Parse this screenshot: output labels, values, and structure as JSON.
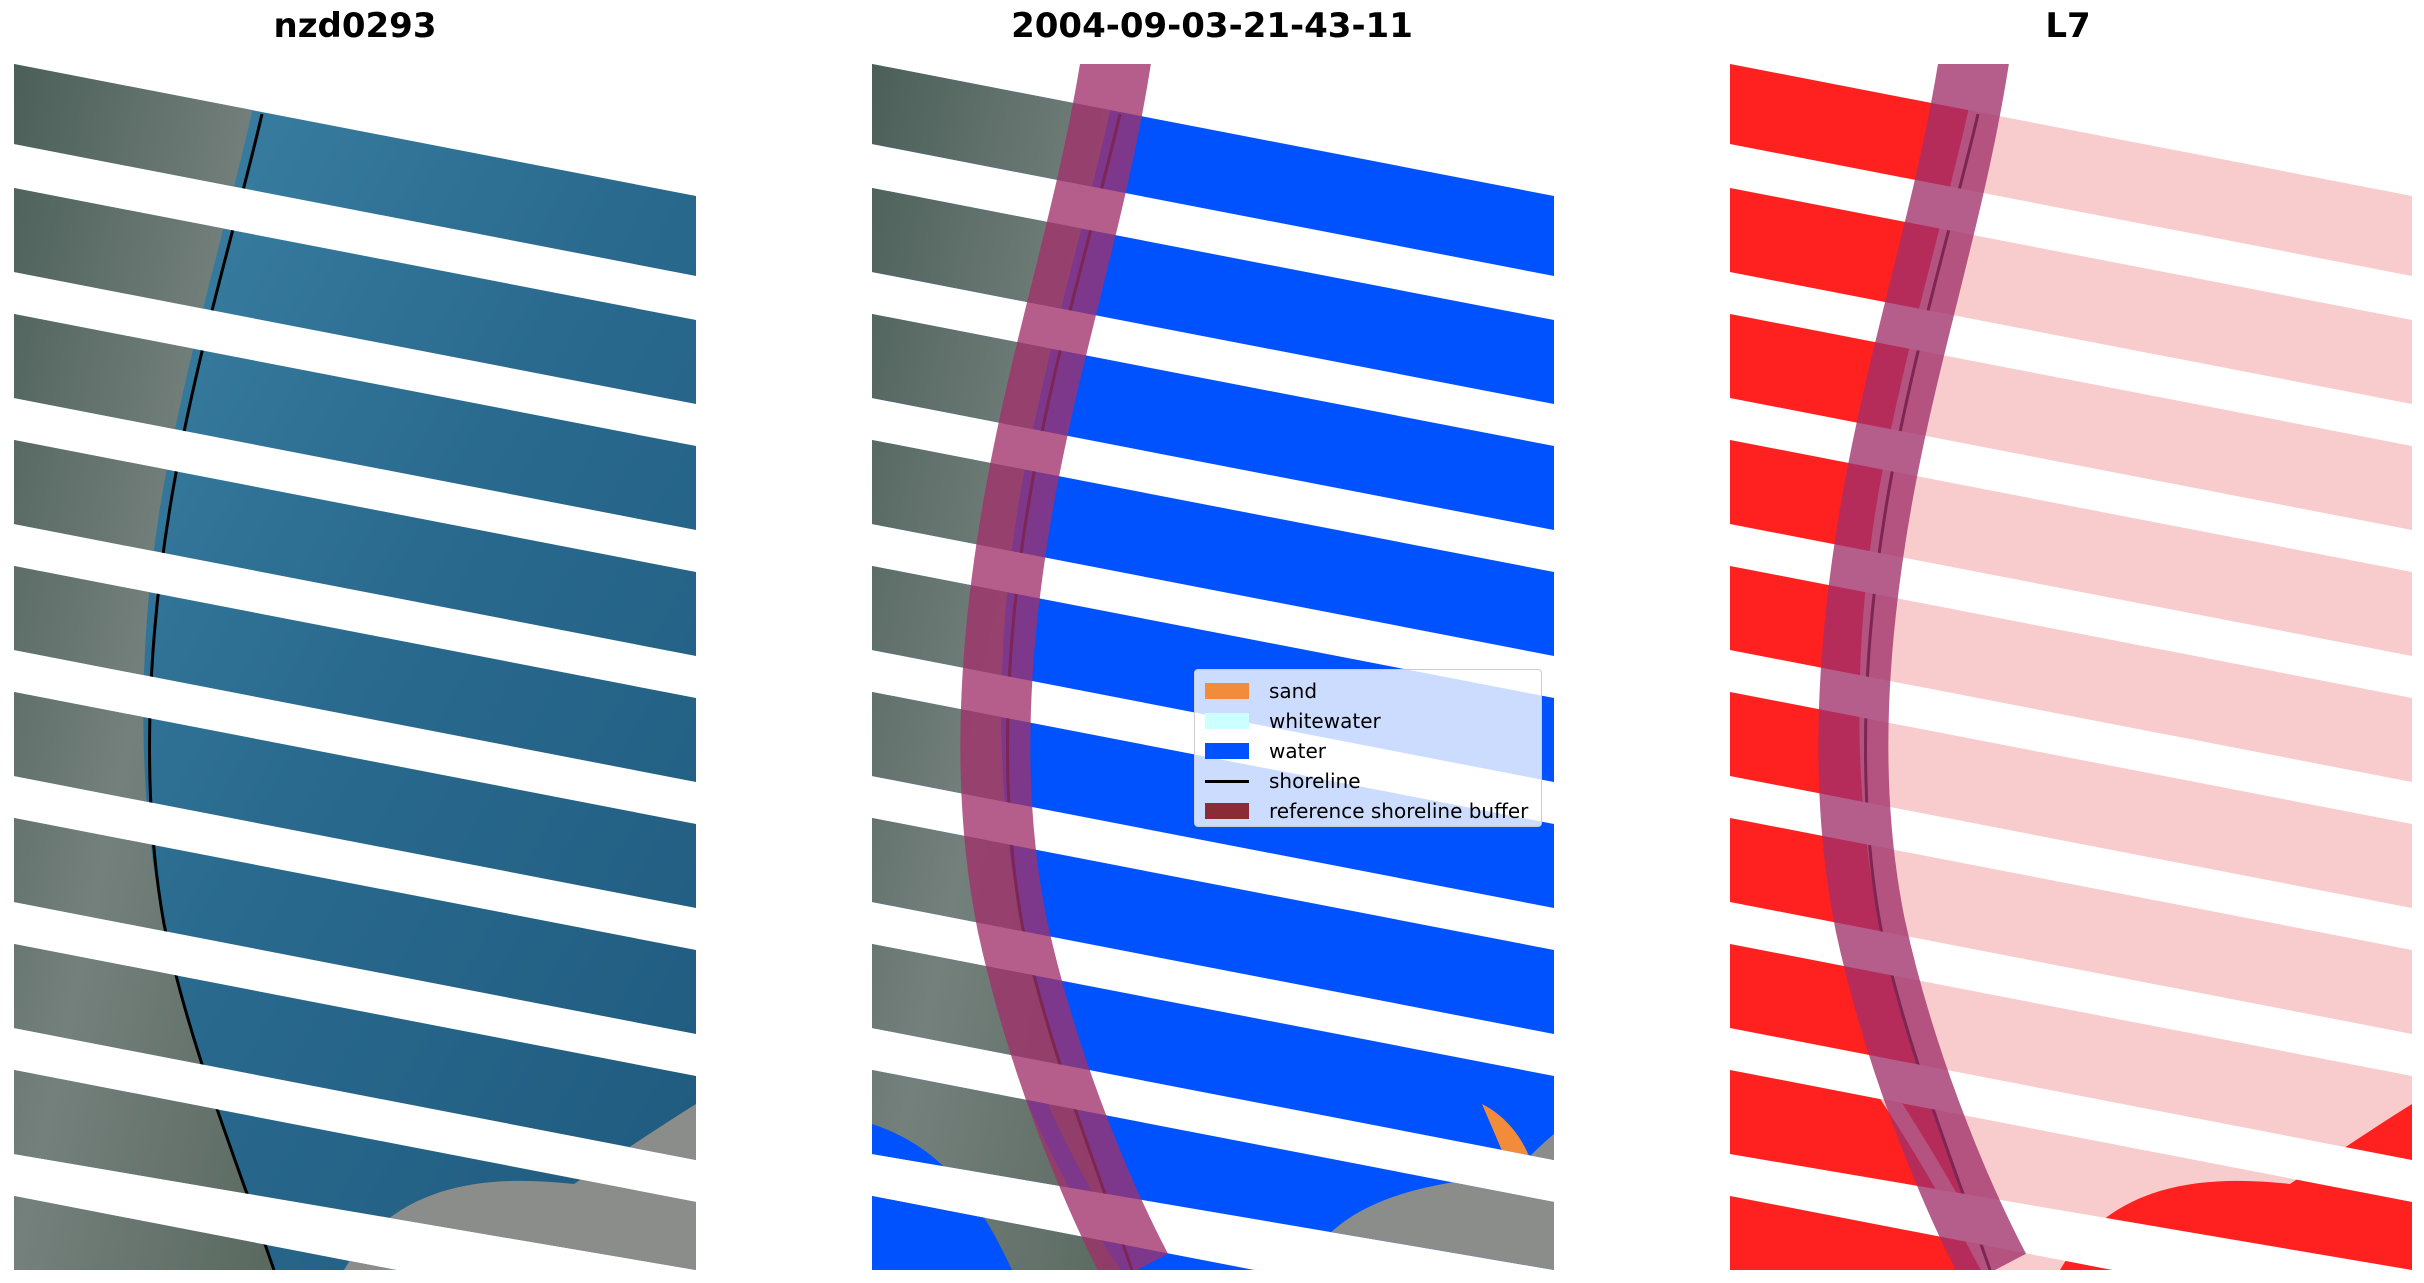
{
  "panels": [
    {
      "title": "nzd0293"
    },
    {
      "title": "2004-09-03-21-43-11"
    },
    {
      "title": "L7"
    }
  ],
  "legend": {
    "items": [
      {
        "label": "sand",
        "color": "#f28c3a"
      },
      {
        "label": "whitewater",
        "color": "#ccffff"
      },
      {
        "label": "water",
        "color": "#0052ff"
      },
      {
        "label": "shoreline",
        "color": "#000000"
      },
      {
        "label": "reference shoreline buffer",
        "color": "#8b2b36"
      }
    ]
  },
  "colors": {
    "ocean_rgb": "#2a6a8f",
    "land_rgb": "#5d6f6c",
    "water_class": "#0052ff",
    "mndwi_water": "#f8cccc",
    "mndwi_land": "#ff2020",
    "buffer": "#a0306a"
  }
}
